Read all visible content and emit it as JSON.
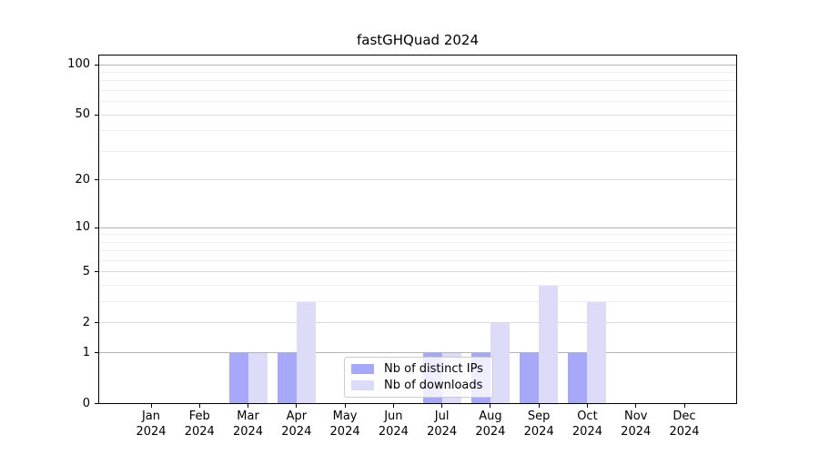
{
  "title": "fastGHQuad 2024",
  "legend": {
    "items": [
      {
        "label": "Nb of distinct IPs",
        "color": "#a8a8f8"
      },
      {
        "label": "Nb of downloads",
        "color": "#dcdcf8"
      }
    ]
  },
  "chart_data": {
    "type": "bar",
    "title": "fastGHQuad 2024",
    "categories": [
      "Jan",
      "Feb",
      "Mar",
      "Apr",
      "May",
      "Jun",
      "Jul",
      "Aug",
      "Sep",
      "Oct",
      "Nov",
      "Dec"
    ],
    "year_label": "2024",
    "series": [
      {
        "name": "Nb of distinct IPs",
        "color": "#a8a8f8",
        "values": [
          0,
          0,
          1,
          1,
          0,
          0,
          1,
          1,
          1,
          1,
          0,
          0
        ]
      },
      {
        "name": "Nb of downloads",
        "color": "#dcdcf8",
        "values": [
          0,
          0,
          1,
          3,
          0,
          0,
          1,
          2,
          4,
          3,
          0,
          0
        ]
      }
    ],
    "yscale": "log1p",
    "ylim": [
      0,
      115
    ],
    "yticks": [
      0,
      1,
      2,
      5,
      10,
      20,
      50,
      100
    ],
    "decade_gridline_values": [
      1,
      10,
      100
    ],
    "labeled_gridline_values": [
      2,
      5,
      20,
      50
    ],
    "minor_gridline_values": [
      3,
      4,
      6,
      7,
      8,
      9,
      30,
      40,
      60,
      70,
      80,
      90
    ],
    "grid": true,
    "legend_position": "bottom-center",
    "colors": {
      "decade_grid": "#b4b4b4",
      "labeled_grid": "#dcdcdc",
      "minor_grid": "#efefef",
      "spine": "#000000",
      "background": "#ffffff"
    }
  }
}
